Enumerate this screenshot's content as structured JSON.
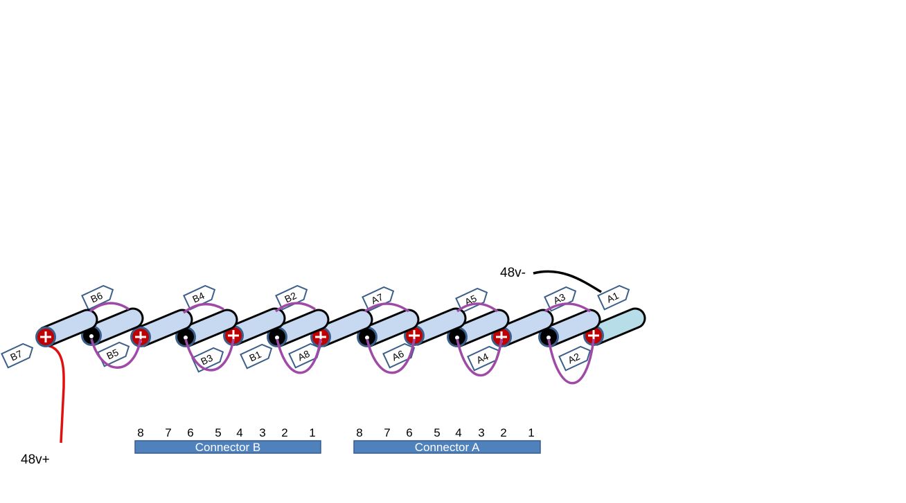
{
  "labels": {
    "neg_terminal": "48v-",
    "pos_terminal": "48v+"
  },
  "cell_tags": [
    "B7",
    "B6",
    "B5",
    "B4",
    "B3",
    "B2",
    "B1",
    "A8",
    "A7",
    "A6",
    "A5",
    "A4",
    "A3",
    "A2",
    "A1"
  ],
  "connector_b": {
    "label": "Connector B",
    "pins": [
      "8",
      "7",
      "6",
      "5",
      "4",
      "3",
      "2",
      "1"
    ]
  },
  "connector_a": {
    "label": "Connector A",
    "pins": [
      "8",
      "7",
      "6",
      "5",
      "4",
      "3",
      "2",
      "1"
    ]
  },
  "colors": {
    "cell_body": "#c6d9f0",
    "last_cell_body": "#b7dde8",
    "positive_terminal": "#c00000",
    "negative_terminal": "#000000",
    "terminal_ring": "#3b5f8a",
    "jumper": "#a04aa8",
    "pos_wire": "#e01010",
    "neg_wire": "#000000",
    "tag_border": "#3b5f8a",
    "connector_fill": "#4f81bd"
  }
}
